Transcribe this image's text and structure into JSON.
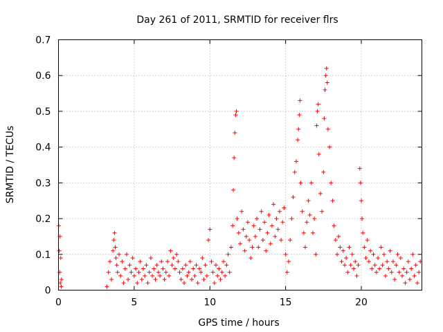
{
  "chart_data": {
    "type": "scatter",
    "title": "Day 261 of 2011, SRMTID for receiver flrs",
    "xlabel": "GPS time / hours",
    "ylabel": "SRMTID / TECUs",
    "xlim": [
      0,
      24
    ],
    "ylim": [
      0,
      0.7
    ],
    "xticks": [
      0,
      5,
      10,
      15,
      20
    ],
    "xtick_labels": [
      "0",
      "5",
      "10",
      "15",
      "20"
    ],
    "yticks": [
      0,
      0.1,
      0.2,
      0.3,
      0.4,
      0.5,
      0.6,
      0.7
    ],
    "ytick_labels": [
      "0",
      "0.1",
      "0.2",
      "0.3",
      "0.4",
      "0.5",
      "0.6",
      "0.7"
    ],
    "grid": true,
    "marker": "plus",
    "series": [
      {
        "name": "flrs",
        "color": "#ff0000",
        "x": [
          0.02,
          0.05,
          0.08,
          0.1,
          0.12,
          0.15,
          0.18,
          0.2,
          3.2,
          3.3,
          3.4,
          3.5,
          3.6,
          3.65,
          3.7,
          3.75,
          3.8,
          3.85,
          3.9,
          4.0,
          4.1,
          4.2,
          4.3,
          4.4,
          4.5,
          4.6,
          4.7,
          4.8,
          4.9,
          5.0,
          5.1,
          5.2,
          5.3,
          5.4,
          5.5,
          5.6,
          5.7,
          5.8,
          5.9,
          6.0,
          6.1,
          6.2,
          6.3,
          6.4,
          6.5,
          6.6,
          6.7,
          6.8,
          6.9,
          7.0,
          7.1,
          7.2,
          7.3,
          7.4,
          7.5,
          7.6,
          7.7,
          7.8,
          7.9,
          8.0,
          8.1,
          8.2,
          8.3,
          8.4,
          8.5,
          8.6,
          8.7,
          8.8,
          8.9,
          9.0,
          9.1,
          9.2,
          9.3,
          9.4,
          9.5,
          9.6,
          9.7,
          9.8,
          9.9,
          10.0,
          10.1,
          10.2,
          10.3,
          10.4,
          10.5,
          10.6,
          10.7,
          10.8,
          10.9,
          11.0,
          11.1,
          11.2,
          11.3,
          11.4,
          11.5,
          11.55,
          11.6,
          11.65,
          11.7,
          11.75,
          11.8,
          11.9,
          12.0,
          12.1,
          12.2,
          12.3,
          12.4,
          12.5,
          12.6,
          12.7,
          12.8,
          12.9,
          13.0,
          13.1,
          13.2,
          13.3,
          13.4,
          13.5,
          13.6,
          13.7,
          13.8,
          13.9,
          14.0,
          14.1,
          14.2,
          14.3,
          14.4,
          14.5,
          14.6,
          14.7,
          14.8,
          14.9,
          15.0,
          15.1,
          15.2,
          15.3,
          15.4,
          15.5,
          15.6,
          15.7,
          15.8,
          15.85,
          15.9,
          15.95,
          16.0,
          16.1,
          16.2,
          16.3,
          16.4,
          16.5,
          16.6,
          16.7,
          16.8,
          16.9,
          17.0,
          17.05,
          17.1,
          17.15,
          17.2,
          17.3,
          17.4,
          17.5,
          17.55,
          17.6,
          17.65,
          17.7,
          17.75,
          17.8,
          17.9,
          18.0,
          18.1,
          18.2,
          18.3,
          18.4,
          18.5,
          18.6,
          18.7,
          18.8,
          18.9,
          19.0,
          19.1,
          19.2,
          19.3,
          19.4,
          19.5,
          19.6,
          19.7,
          19.8,
          19.9,
          19.95,
          20.0,
          20.05,
          20.1,
          20.2,
          20.3,
          20.4,
          20.5,
          20.6,
          20.7,
          20.8,
          20.9,
          21.0,
          21.1,
          21.2,
          21.3,
          21.4,
          21.5,
          21.6,
          21.7,
          21.8,
          21.9,
          22.0,
          22.1,
          22.2,
          22.3,
          22.4,
          22.5,
          22.6,
          22.7,
          22.8,
          22.9,
          23.0,
          23.1,
          23.2,
          23.3,
          23.4,
          23.5,
          23.6,
          23.7,
          23.8,
          23.9
        ],
        "y": [
          0.18,
          0.11,
          0.05,
          0.15,
          0.02,
          0.09,
          0.01,
          0.03,
          0.01,
          0.05,
          0.08,
          0.03,
          0.11,
          0.14,
          0.16,
          0.12,
          0.09,
          0.07,
          0.05,
          0.1,
          0.04,
          0.08,
          0.02,
          0.06,
          0.1,
          0.03,
          0.07,
          0.05,
          0.09,
          0.04,
          0.06,
          0.02,
          0.05,
          0.08,
          0.03,
          0.06,
          0.04,
          0.07,
          0.02,
          0.05,
          0.09,
          0.04,
          0.06,
          0.03,
          0.07,
          0.05,
          0.04,
          0.08,
          0.06,
          0.03,
          0.05,
          0.08,
          0.04,
          0.11,
          0.07,
          0.09,
          0.06,
          0.1,
          0.08,
          0.05,
          0.03,
          0.06,
          0.02,
          0.07,
          0.04,
          0.05,
          0.08,
          0.03,
          0.06,
          0.04,
          0.07,
          0.02,
          0.06,
          0.05,
          0.09,
          0.03,
          0.07,
          0.04,
          0.14,
          0.17,
          0.08,
          0.05,
          0.02,
          0.07,
          0.04,
          0.06,
          0.03,
          0.05,
          0.08,
          0.04,
          0.07,
          0.1,
          0.05,
          0.12,
          0.18,
          0.28,
          0.37,
          0.44,
          0.49,
          0.5,
          0.2,
          0.16,
          0.13,
          0.22,
          0.17,
          0.11,
          0.15,
          0.19,
          0.14,
          0.09,
          0.12,
          0.18,
          0.15,
          0.2,
          0.12,
          0.17,
          0.22,
          0.14,
          0.19,
          0.11,
          0.16,
          0.21,
          0.13,
          0.18,
          0.24,
          0.15,
          0.2,
          0.17,
          0.22,
          0.14,
          0.19,
          0.23,
          0.1,
          0.05,
          0.08,
          0.14,
          0.2,
          0.26,
          0.33,
          0.36,
          0.42,
          0.45,
          0.49,
          0.53,
          0.3,
          0.22,
          0.16,
          0.12,
          0.19,
          0.25,
          0.21,
          0.3,
          0.16,
          0.2,
          0.1,
          0.46,
          0.5,
          0.52,
          0.38,
          0.27,
          0.22,
          0.33,
          0.48,
          0.56,
          0.6,
          0.62,
          0.58,
          0.45,
          0.4,
          0.3,
          0.25,
          0.18,
          0.14,
          0.1,
          0.15,
          0.12,
          0.08,
          0.11,
          0.07,
          0.09,
          0.05,
          0.12,
          0.07,
          0.1,
          0.06,
          0.08,
          0.04,
          0.07,
          0.34,
          0.3,
          0.25,
          0.2,
          0.16,
          0.12,
          0.09,
          0.14,
          0.08,
          0.11,
          0.06,
          0.1,
          0.07,
          0.05,
          0.09,
          0.06,
          0.12,
          0.07,
          0.1,
          0.04,
          0.08,
          0.06,
          0.11,
          0.05,
          0.08,
          0.03,
          0.07,
          0.1,
          0.05,
          0.09,
          0.04,
          0.06,
          0.02,
          0.05,
          0.08,
          0.03,
          0.06,
          0.1,
          0.04,
          0.07,
          0.02,
          0.05,
          0.08
        ]
      }
    ]
  }
}
